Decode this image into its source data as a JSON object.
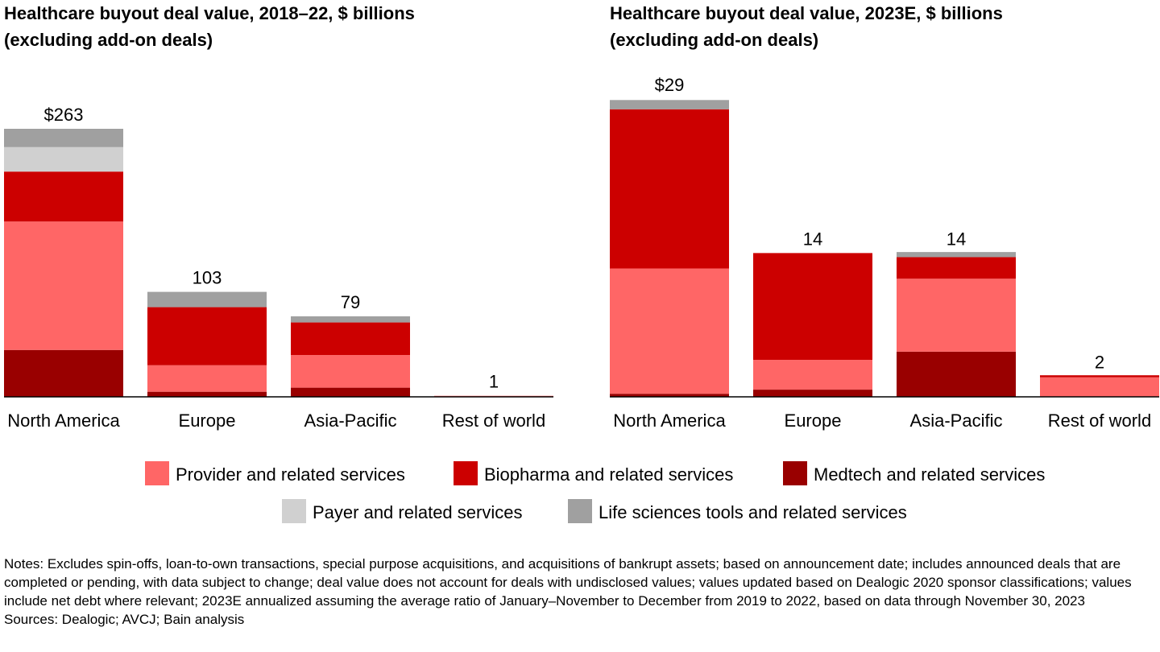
{
  "chart_data": [
    {
      "type": "bar",
      "stacked": true,
      "title": "Healthcare buyout deal value, 2018–22, $ billions",
      "subtitle": "(excluding add-on deals)",
      "categories": [
        "North America",
        "Europe",
        "Asia-Pacific",
        "Rest of world"
      ],
      "series": [
        {
          "name": "Provider and related services",
          "color": "#ff6666",
          "values": [
            126,
            26,
            32,
            1
          ]
        },
        {
          "name": "Biopharma and related services",
          "color": "#cc0000",
          "values": [
            49,
            57,
            32,
            0
          ]
        },
        {
          "name": "Medtech and related services",
          "color": "#990000",
          "values": [
            46,
            5,
            9,
            0
          ]
        },
        {
          "name": "Payer and related services",
          "color": "#d0d0d0",
          "values": [
            24,
            0,
            0,
            0
          ]
        },
        {
          "name": "Life sciences tools and related services",
          "color": "#a0a0a0",
          "values": [
            18,
            15,
            6,
            0
          ]
        }
      ],
      "totals": [
        263,
        103,
        79,
        1
      ],
      "value_labels": [
        "$263",
        "103",
        "79",
        "1"
      ]
    },
    {
      "type": "bar",
      "stacked": true,
      "title": "Healthcare buyout deal value, 2023E, $ billions",
      "subtitle": "(excluding add-on deals)",
      "categories": [
        "North America",
        "Europe",
        "Asia-Pacific",
        "Rest of world"
      ],
      "series": [
        {
          "name": "Provider and related services",
          "color": "#ff6666",
          "values": [
            12.2,
            2.9,
            7.1,
            1.9
          ]
        },
        {
          "name": "Biopharma and related services",
          "color": "#cc0000",
          "values": [
            15.5,
            10.4,
            2.1,
            0.2
          ]
        },
        {
          "name": "Medtech and related services",
          "color": "#990000",
          "values": [
            0.3,
            0.7,
            4.4,
            0
          ]
        },
        {
          "name": "Payer and related services",
          "color": "#d0d0d0",
          "values": [
            0,
            0,
            0,
            0
          ]
        },
        {
          "name": "Life sciences tools and related services",
          "color": "#a0a0a0",
          "values": [
            0.9,
            0,
            0.5,
            0
          ]
        }
      ],
      "totals": [
        29,
        14,
        14,
        2
      ],
      "value_labels": [
        "$29",
        "14",
        "14",
        "2"
      ]
    }
  ],
  "notes": "Notes: Excludes spin-offs, loan-to-own transactions, special purpose acquisitions, and acquisitions of bankrupt assets; based on announcement date; includes announced deals that are completed or pending, with data subject to change; deal value does not account for deals with undisclosed values; values updated based on Dealogic 2020 sponsor classifications; values include net debt where relevant; 2023E annualized assuming the average ratio of January–November to December from 2019 to 2022, based on data through November 30, 2023",
  "sources": "Sources: Dealogic; AVCJ; Bain analysis"
}
